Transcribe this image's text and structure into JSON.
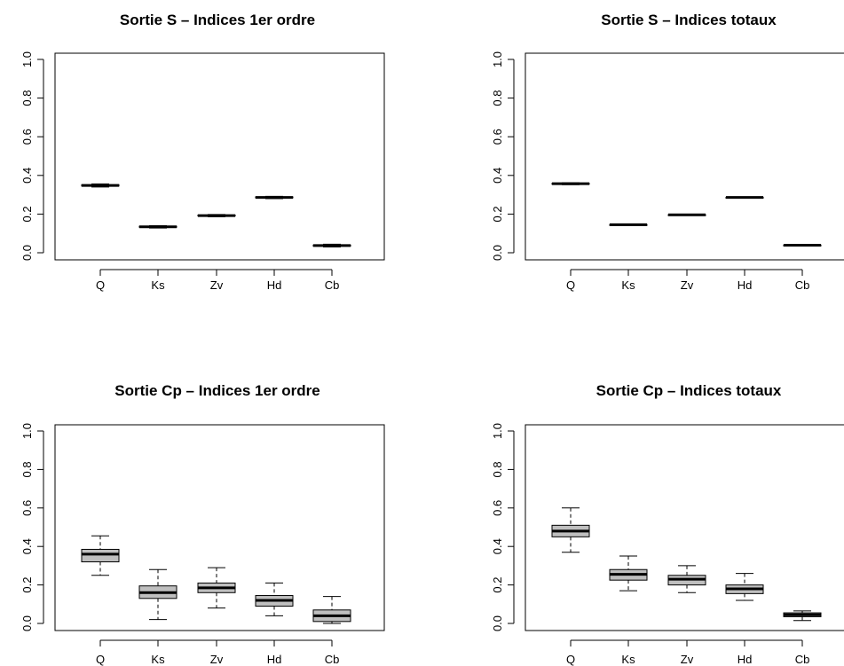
{
  "chart_data": [
    {
      "type": "boxplot",
      "title": "Sortie S – Indices 1er ordre",
      "categories": [
        "Q",
        "Ks",
        "Zv",
        "Hd",
        "Cb"
      ],
      "ylim": [
        0,
        1
      ],
      "yticks": [
        "0.0",
        "0.2",
        "0.4",
        "0.6",
        "0.8",
        "1.0"
      ],
      "boxes": [
        {
          "min": 0.34,
          "q1": 0.345,
          "median": 0.348,
          "q3": 0.352,
          "max": 0.356
        },
        {
          "min": 0.128,
          "q1": 0.132,
          "median": 0.134,
          "q3": 0.137,
          "max": 0.14
        },
        {
          "min": 0.186,
          "q1": 0.19,
          "median": 0.192,
          "q3": 0.195,
          "max": 0.198
        },
        {
          "min": 0.28,
          "q1": 0.284,
          "median": 0.286,
          "q3": 0.289,
          "max": 0.292
        },
        {
          "min": 0.03,
          "q1": 0.034,
          "median": 0.037,
          "q3": 0.04,
          "max": 0.044
        }
      ]
    },
    {
      "type": "boxplot",
      "title": "Sortie S – Indices totaux",
      "categories": [
        "Q",
        "Ks",
        "Zv",
        "Hd",
        "Cb"
      ],
      "ylim": [
        0,
        1
      ],
      "yticks": [
        "0.0",
        "0.2",
        "0.4",
        "0.6",
        "0.8",
        "1.0"
      ],
      "boxes": [
        {
          "min": 0.352,
          "q1": 0.355,
          "median": 0.357,
          "q3": 0.359,
          "max": 0.362
        },
        {
          "min": 0.142,
          "q1": 0.144,
          "median": 0.145,
          "q3": 0.146,
          "max": 0.148
        },
        {
          "min": 0.193,
          "q1": 0.195,
          "median": 0.196,
          "q3": 0.197,
          "max": 0.199
        },
        {
          "min": 0.283,
          "q1": 0.285,
          "median": 0.286,
          "q3": 0.287,
          "max": 0.289
        },
        {
          "min": 0.036,
          "q1": 0.038,
          "median": 0.039,
          "q3": 0.04,
          "max": 0.042
        }
      ]
    },
    {
      "type": "boxplot",
      "title": "Sortie Cp – Indices 1er ordre",
      "categories": [
        "Q",
        "Ks",
        "Zv",
        "Hd",
        "Cb"
      ],
      "ylim": [
        0,
        1
      ],
      "yticks": [
        "0.0",
        "0.2",
        "0.4",
        "0.6",
        "0.8",
        "1.0"
      ],
      "boxes": [
        {
          "min": 0.25,
          "q1": 0.32,
          "median": 0.36,
          "q3": 0.385,
          "max": 0.455
        },
        {
          "min": 0.02,
          "q1": 0.13,
          "median": 0.16,
          "q3": 0.195,
          "max": 0.28
        },
        {
          "min": 0.08,
          "q1": 0.16,
          "median": 0.185,
          "q3": 0.21,
          "max": 0.29
        },
        {
          "min": 0.04,
          "q1": 0.09,
          "median": 0.12,
          "q3": 0.145,
          "max": 0.21
        },
        {
          "min": 0.0,
          "q1": 0.01,
          "median": 0.04,
          "q3": 0.07,
          "max": 0.14
        }
      ]
    },
    {
      "type": "boxplot",
      "title": "Sortie Cp – Indices totaux",
      "categories": [
        "Q",
        "Ks",
        "Zv",
        "Hd",
        "Cb"
      ],
      "ylim": [
        0,
        1
      ],
      "yticks": [
        "0.0",
        "0.2",
        "0.4",
        "0.6",
        "0.8",
        "1.0"
      ],
      "boxes": [
        {
          "min": 0.37,
          "q1": 0.45,
          "median": 0.48,
          "q3": 0.51,
          "max": 0.6
        },
        {
          "min": 0.17,
          "q1": 0.225,
          "median": 0.255,
          "q3": 0.28,
          "max": 0.35
        },
        {
          "min": 0.16,
          "q1": 0.2,
          "median": 0.23,
          "q3": 0.25,
          "max": 0.3
        },
        {
          "min": 0.12,
          "q1": 0.155,
          "median": 0.18,
          "q3": 0.2,
          "max": 0.26
        },
        {
          "min": 0.015,
          "q1": 0.035,
          "median": 0.045,
          "q3": 0.055,
          "max": 0.065
        }
      ]
    }
  ]
}
